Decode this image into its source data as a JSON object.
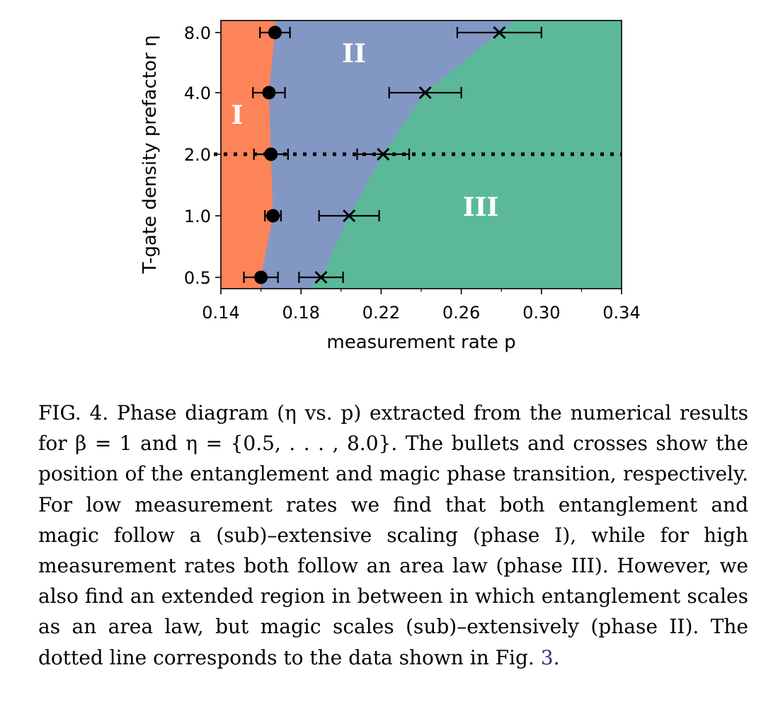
{
  "chart_data": {
    "type": "scatter",
    "xlabel": "measurement rate p",
    "ylabel": "T-gate density prefactor η",
    "xlim": [
      0.14,
      0.34
    ],
    "x_ticks": [
      "0.14",
      "0.18",
      "0.22",
      "0.26",
      "0.30",
      "0.34"
    ],
    "y_categories": [
      "0.5",
      "1.0",
      "2.0",
      "4.0",
      "8.0"
    ],
    "region_labels": [
      "I",
      "II",
      "III"
    ],
    "region_colors": [
      "#fc8458",
      "#8397c4",
      "#5bb999"
    ],
    "dotted_line_eta": "2.0",
    "series": [
      {
        "marker": "circle",
        "points": [
          {
            "eta": "0.5",
            "p": 0.16,
            "err_lo": 0.0085,
            "err_hi": 0.0085
          },
          {
            "eta": "1.0",
            "p": 0.166,
            "err_lo": 0.004,
            "err_hi": 0.004
          },
          {
            "eta": "2.0",
            "p": 0.165,
            "err_lo": 0.0085,
            "err_hi": 0.0085
          },
          {
            "eta": "4.0",
            "p": 0.164,
            "err_lo": 0.008,
            "err_hi": 0.008
          },
          {
            "eta": "8.0",
            "p": 0.167,
            "err_lo": 0.0075,
            "err_hi": 0.0075
          }
        ]
      },
      {
        "marker": "cross",
        "points": [
          {
            "eta": "0.5",
            "p": 0.19,
            "err_lo": 0.011,
            "err_hi": 0.011
          },
          {
            "eta": "1.0",
            "p": 0.204,
            "err_lo": 0.015,
            "err_hi": 0.015
          },
          {
            "eta": "2.0",
            "p": 0.221,
            "err_lo": 0.013,
            "err_hi": 0.013
          },
          {
            "eta": "4.0",
            "p": 0.242,
            "err_lo": 0.018,
            "err_hi": 0.018
          },
          {
            "eta": "8.0",
            "p": 0.279,
            "err_lo": 0.021,
            "err_hi": 0.021
          }
        ]
      }
    ]
  },
  "caption": {
    "prefix": "FIG. 4.",
    "text": " Phase diagram (η vs. p) extracted from the numerical results for β = 1 and η = {0.5, . . . , 8.0}.  The bullets and crosses show the position of the entanglement and magic phase transition, respectively.  For low measurement rates we find that both entanglement and magic follow a (sub)–extensive scaling (phase I), while for high measurement rates both follow an area law (phase III). However, we also find an extended region in between in which entanglement scales as an area law, but magic scales (sub)–extensively (phase II). The dotted line corresponds to the data shown in Fig. ",
    "ref": "3",
    "end": "."
  }
}
